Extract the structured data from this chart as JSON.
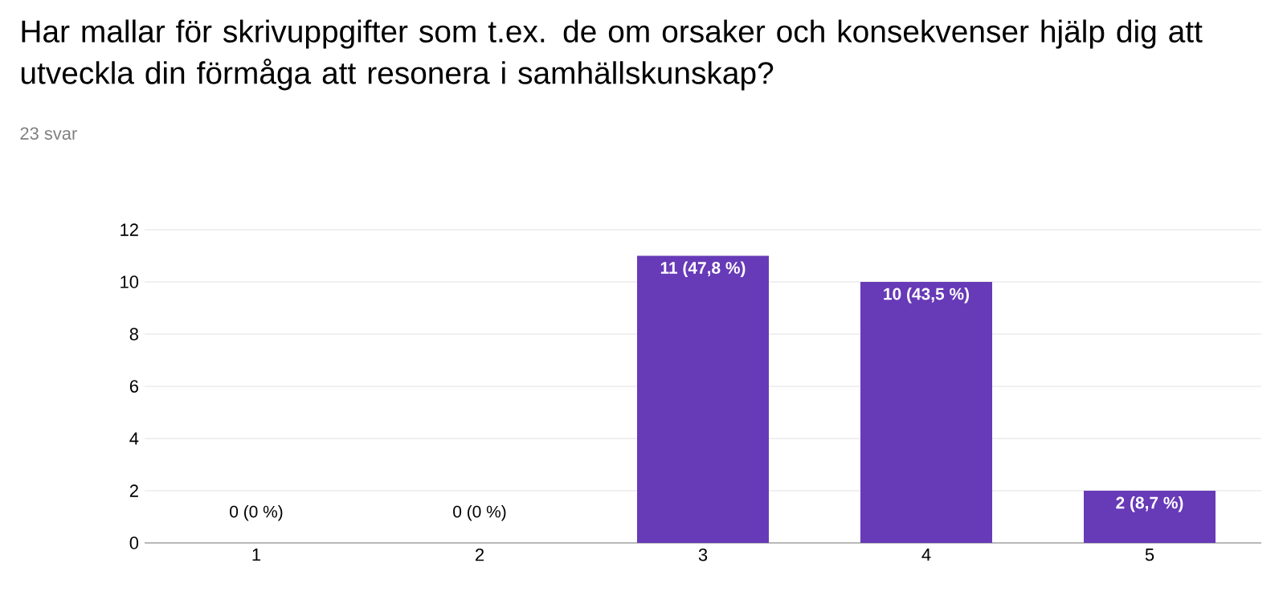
{
  "chart_data": {
    "type": "bar",
    "title": "Har mallar för skrivuppgifter som t.ex. de om orsaker och konsekvenser hjälp dig att utveckla din förmåga att resonera i samhällskunskap?",
    "subtitle": "23 svar",
    "categories": [
      "1",
      "2",
      "3",
      "4",
      "5"
    ],
    "values": [
      0,
      0,
      11,
      10,
      2
    ],
    "value_labels": [
      "0 (0 %)",
      "0 (0 %)",
      "11 (47,8 %)",
      "10 (43,5 %)",
      "2 (8,7 %)"
    ],
    "color": "#673ab7",
    "ylim": [
      0,
      12
    ],
    "yticks": [
      0,
      2,
      4,
      6,
      8,
      10,
      12
    ],
    "grid": "y"
  }
}
